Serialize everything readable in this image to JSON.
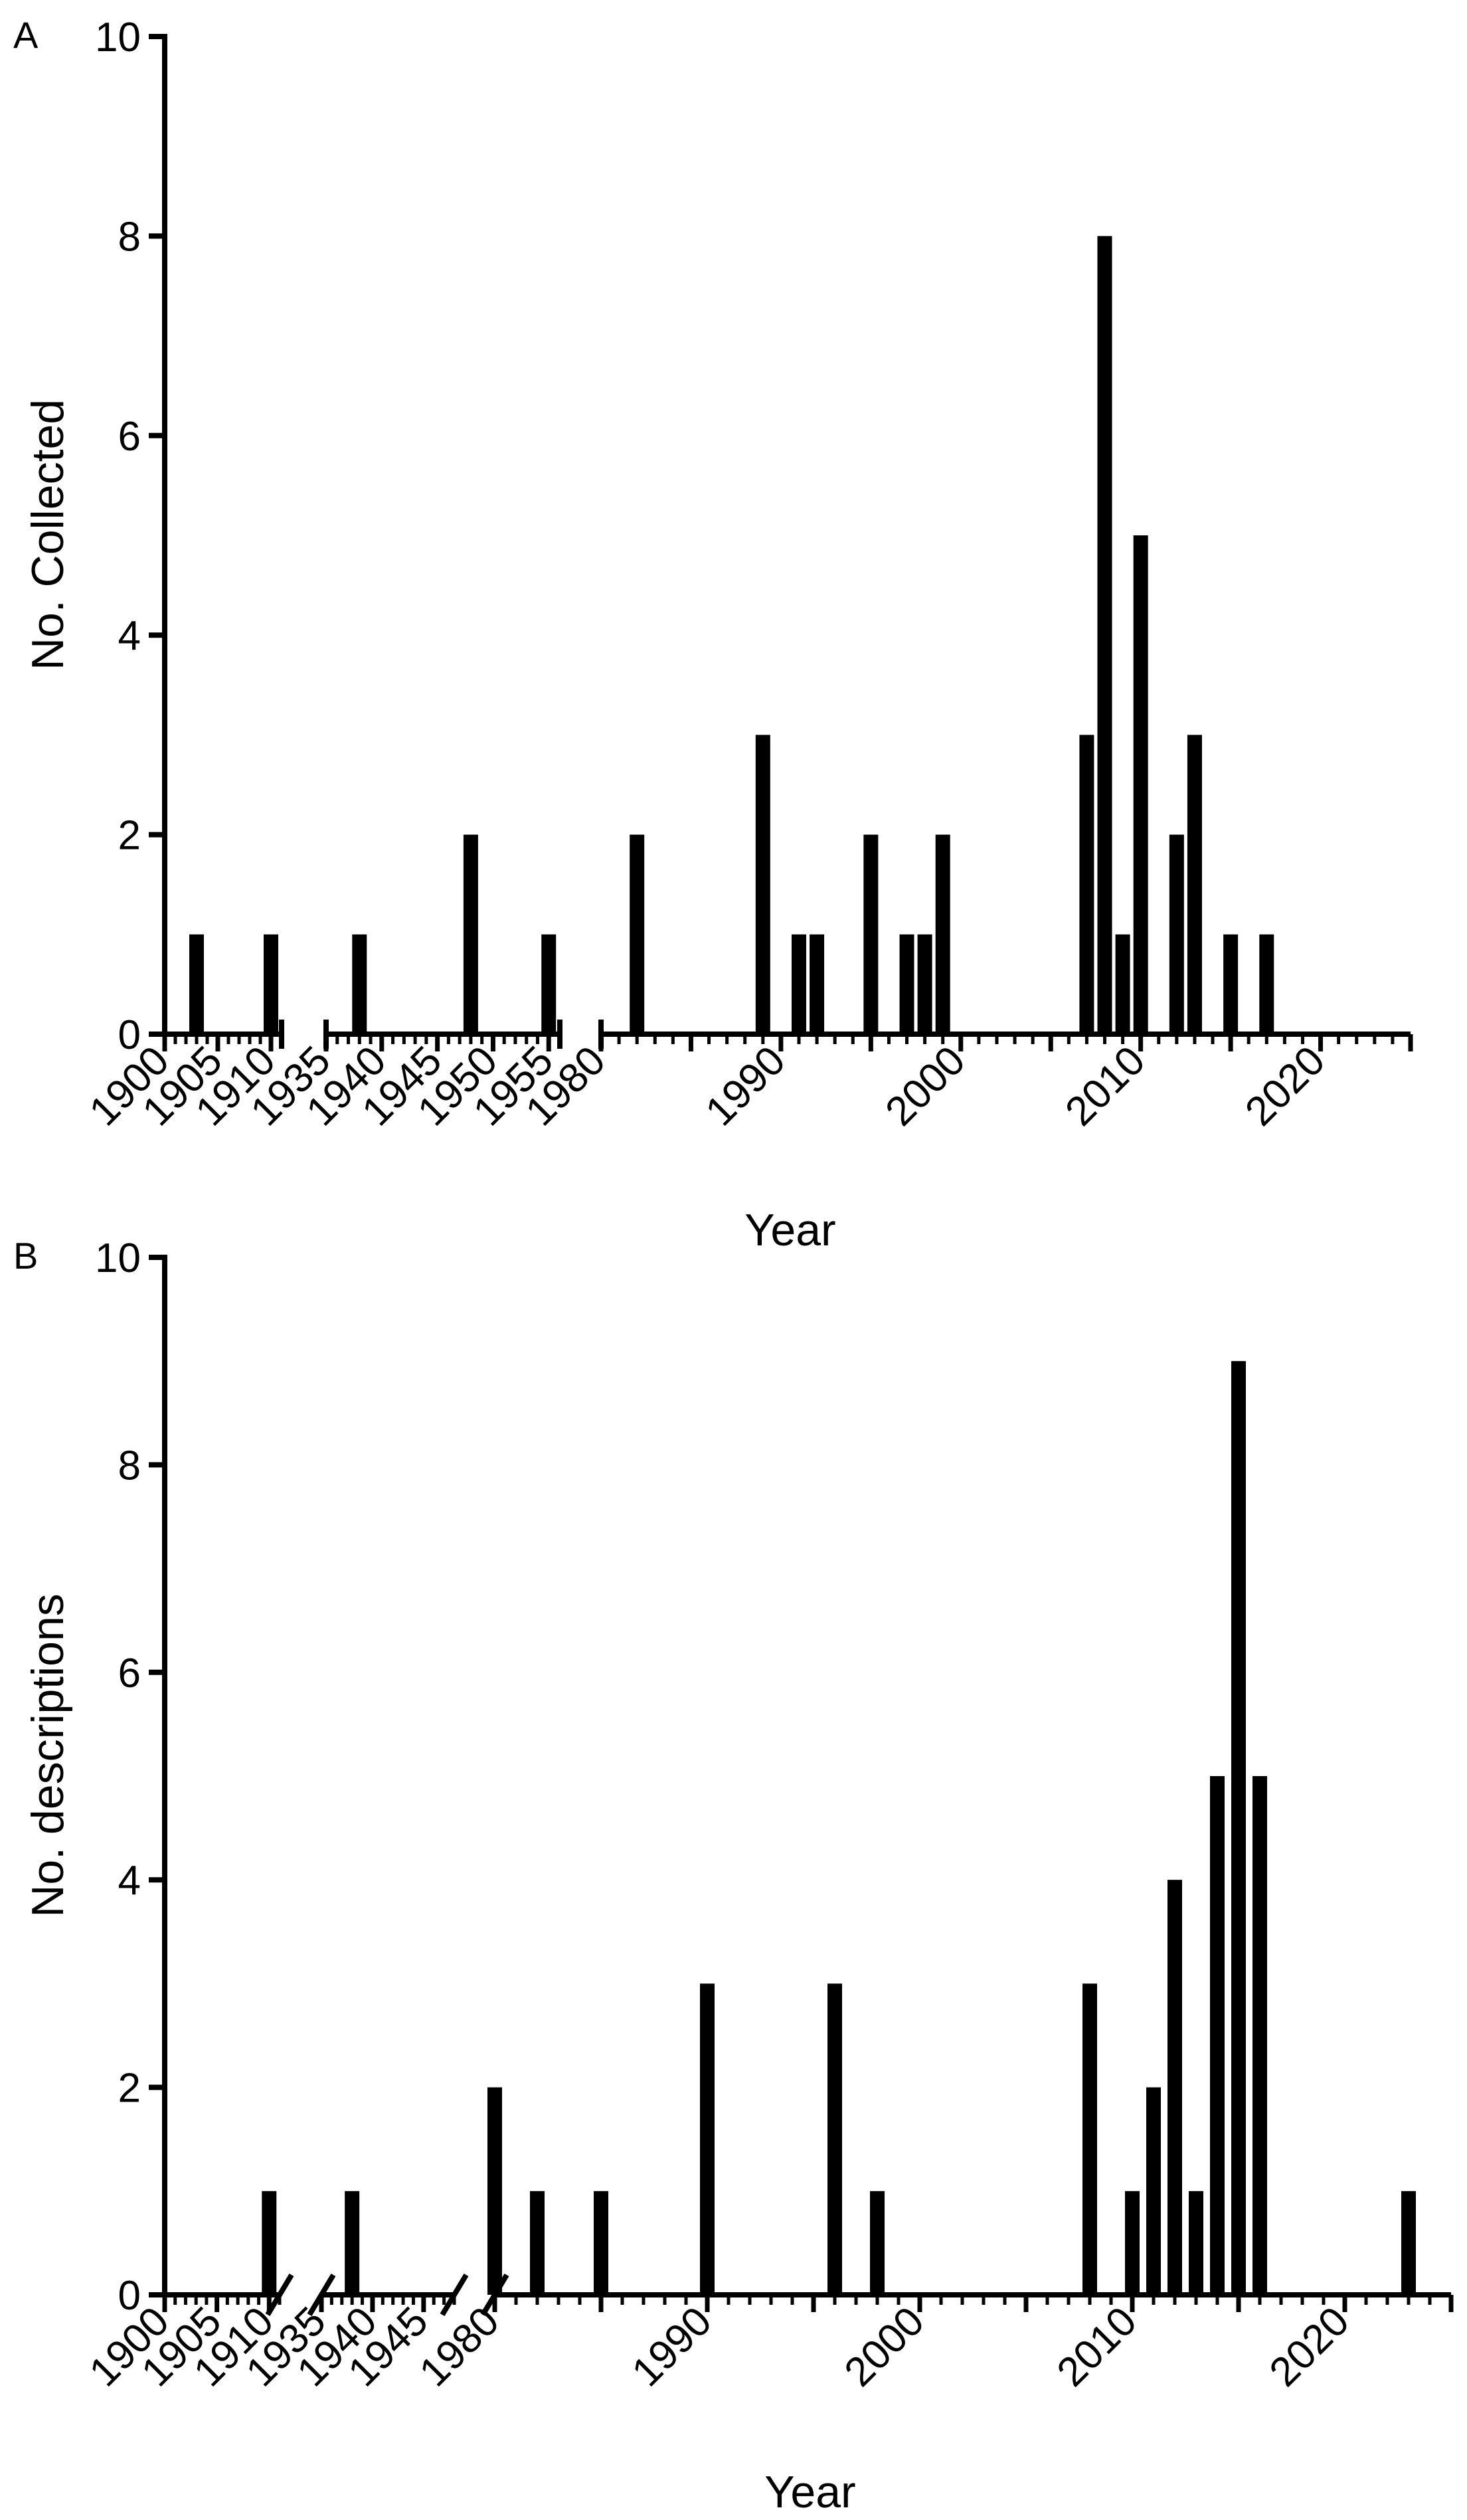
{
  "chart_data": [
    {
      "type": "bar",
      "panel_label": "A",
      "xlabel": "Year",
      "ylabel": "No. Collected",
      "ylim": [
        0,
        10
      ],
      "y_ticks": [
        "0",
        "2",
        "4",
        "6",
        "8",
        "10"
      ],
      "x_segments": [
        {
          "start": 1900,
          "end": 1911,
          "labels": [
            "1900",
            "1905",
            "1910"
          ]
        },
        {
          "start": 1935,
          "end": 1956,
          "labels": [
            "1935",
            "1940",
            "1945",
            "1950",
            "1955"
          ]
        },
        {
          "start": 1980,
          "end": 2025,
          "labels": [
            "1980",
            "1990",
            "2000",
            "2010",
            "2020"
          ]
        }
      ],
      "x": [
        1903,
        1910,
        1938,
        1948,
        1955,
        1982,
        1989,
        1991,
        1992,
        1995,
        1997,
        1998,
        1999,
        2007,
        2008,
        2009,
        2010,
        2012,
        2013,
        2015,
        2017
      ],
      "values": [
        1,
        1,
        1,
        2,
        1,
        2,
        3,
        1,
        1,
        2,
        1,
        1,
        2,
        3,
        8,
        1,
        5,
        2,
        3,
        1,
        1
      ]
    },
    {
      "type": "bar",
      "panel_label": "B",
      "xlabel": "Year",
      "ylabel": "No. descriptions",
      "ylim": [
        0,
        10
      ],
      "y_ticks": [
        "0",
        "2",
        "4",
        "6",
        "8",
        "10"
      ],
      "x_segments": [
        {
          "start": 1900,
          "end": 1911,
          "labels": [
            "1900",
            "1905",
            "1910"
          ]
        },
        {
          "start": 1935,
          "end": 1948,
          "labels": [
            "1935",
            "1940",
            "1945"
          ]
        },
        {
          "start": 1980,
          "end": 2025,
          "labels": [
            "1980",
            "1990",
            "2000",
            "2010",
            "2020"
          ]
        }
      ],
      "x": [
        1910,
        1938,
        1980,
        1982,
        1985,
        1990,
        1996,
        1998,
        2008,
        2010,
        2011,
        2012,
        2013,
        2014,
        2015,
        2016,
        2023
      ],
      "values": [
        1,
        1,
        2,
        1,
        1,
        3,
        3,
        1,
        3,
        1,
        2,
        4,
        1,
        5,
        9,
        5,
        1
      ]
    }
  ]
}
